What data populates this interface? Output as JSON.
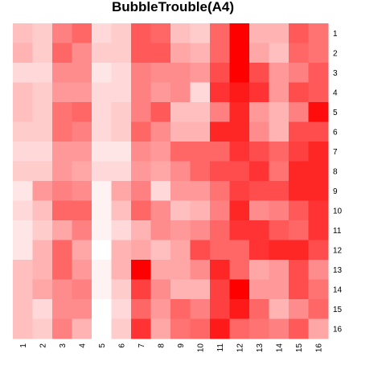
{
  "chart_data": {
    "type": "heatmap",
    "title": "BubbleTrouble(A4)",
    "xlabel": "",
    "ylabel": "",
    "x_categories": [
      "1",
      "2",
      "3",
      "4",
      "5",
      "6",
      "7",
      "8",
      "9",
      "10",
      "11",
      "12",
      "13",
      "14",
      "15",
      "16"
    ],
    "y_categories": [
      "1",
      "2",
      "3",
      "4",
      "5",
      "6",
      "7",
      "8",
      "9",
      "10",
      "11",
      "12",
      "13",
      "14",
      "15",
      "16"
    ],
    "value_range": [
      0,
      1
    ],
    "color_low": "#ffffff",
    "color_high": "#ff0000",
    "legend": "none",
    "grid": false,
    "values": [
      [
        0.25,
        0.2,
        0.5,
        0.6,
        0.15,
        0.2,
        0.65,
        0.6,
        0.25,
        0.2,
        0.6,
        1.0,
        0.3,
        0.3,
        0.65,
        0.55
      ],
      [
        0.3,
        0.2,
        0.6,
        0.45,
        0.2,
        0.2,
        0.65,
        0.65,
        0.35,
        0.3,
        0.6,
        1.0,
        0.35,
        0.25,
        0.6,
        0.55
      ],
      [
        0.15,
        0.15,
        0.45,
        0.45,
        0.1,
        0.15,
        0.5,
        0.45,
        0.45,
        0.4,
        0.7,
        1.0,
        0.7,
        0.4,
        0.5,
        0.65
      ],
      [
        0.25,
        0.2,
        0.4,
        0.4,
        0.15,
        0.15,
        0.5,
        0.4,
        0.45,
        0.15,
        0.8,
        0.9,
        0.8,
        0.4,
        0.7,
        0.65
      ],
      [
        0.25,
        0.2,
        0.55,
        0.6,
        0.15,
        0.2,
        0.5,
        0.65,
        0.25,
        0.25,
        0.5,
        0.85,
        0.4,
        0.3,
        0.5,
        0.95
      ],
      [
        0.2,
        0.2,
        0.55,
        0.5,
        0.15,
        0.2,
        0.6,
        0.45,
        0.3,
        0.3,
        0.85,
        0.85,
        0.45,
        0.3,
        0.7,
        0.7
      ],
      [
        0.15,
        0.15,
        0.4,
        0.4,
        0.1,
        0.1,
        0.45,
        0.4,
        0.6,
        0.6,
        0.6,
        0.8,
        0.7,
        0.6,
        0.75,
        0.85
      ],
      [
        0.2,
        0.2,
        0.4,
        0.35,
        0.15,
        0.15,
        0.4,
        0.35,
        0.45,
        0.6,
        0.7,
        0.7,
        0.8,
        0.55,
        0.85,
        0.85
      ],
      [
        0.1,
        0.4,
        0.5,
        0.45,
        0.05,
        0.35,
        0.5,
        0.15,
        0.4,
        0.4,
        0.55,
        0.75,
        0.7,
        0.7,
        0.85,
        0.85
      ],
      [
        0.15,
        0.25,
        0.6,
        0.6,
        0.05,
        0.25,
        0.6,
        0.45,
        0.25,
        0.3,
        0.5,
        0.85,
        0.45,
        0.5,
        0.65,
        0.8
      ],
      [
        0.1,
        0.2,
        0.35,
        0.5,
        0.05,
        0.15,
        0.3,
        0.45,
        0.4,
        0.45,
        0.6,
        0.8,
        0.8,
        0.65,
        0.6,
        0.8
      ],
      [
        0.1,
        0.3,
        0.6,
        0.35,
        0.0,
        0.3,
        0.35,
        0.25,
        0.35,
        0.7,
        0.6,
        0.6,
        0.8,
        0.85,
        0.85,
        0.7
      ],
      [
        0.25,
        0.3,
        0.6,
        0.4,
        0.05,
        0.3,
        1.0,
        0.35,
        0.35,
        0.45,
        0.85,
        0.6,
        0.35,
        0.4,
        0.7,
        0.45
      ],
      [
        0.25,
        0.35,
        0.45,
        0.5,
        0.05,
        0.2,
        0.75,
        0.45,
        0.3,
        0.3,
        0.75,
        1.0,
        0.4,
        0.4,
        0.7,
        0.55
      ],
      [
        0.25,
        0.15,
        0.45,
        0.45,
        0.0,
        0.15,
        0.6,
        0.4,
        0.6,
        0.5,
        0.75,
        0.9,
        0.6,
        0.3,
        0.45,
        0.6
      ],
      [
        0.25,
        0.2,
        0.5,
        0.3,
        0.0,
        0.2,
        0.8,
        0.35,
        0.55,
        0.6,
        0.9,
        0.6,
        0.55,
        0.5,
        0.65,
        0.35
      ]
    ]
  }
}
